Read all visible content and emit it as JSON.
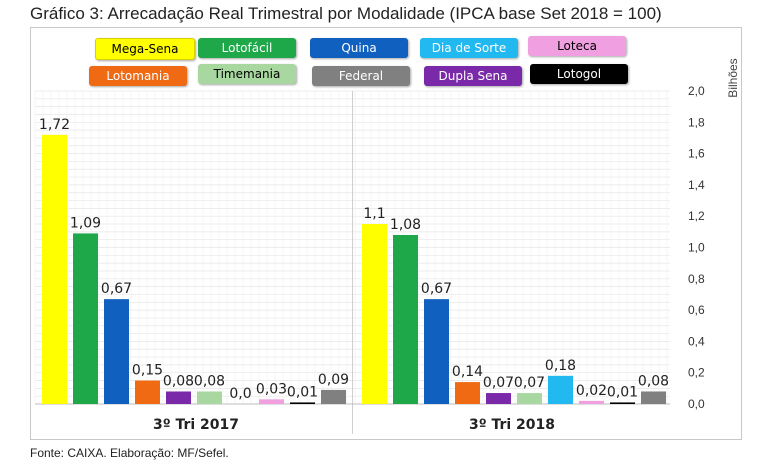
{
  "title": "Gráfico 3: Arrecadação Real Trimestral por Modalidade (IPCA base Set 2018 = 100)",
  "source": "Fonte: CAIXA. Elaboração: MF/Sefel.",
  "chart_data": {
    "type": "bar",
    "categories": [
      "3º Tri 2017",
      "3º Tri 2018"
    ],
    "ylabel": "Bilhões",
    "ylim": [
      0,
      2.0
    ],
    "yticks": [
      "0,0",
      "0,2",
      "0,4",
      "0,6",
      "0,8",
      "1,0",
      "1,2",
      "1,4",
      "1,6",
      "1,8",
      "2,0"
    ],
    "grid": true,
    "legend_position": "top",
    "series": [
      {
        "name": "Mega-Sena",
        "color": "#ffff00",
        "text_color": "#000000",
        "values": [
          1.72,
          1.15
        ],
        "labels": [
          "1,72",
          "1,1"
        ]
      },
      {
        "name": "Lotofácil",
        "color": "#1fa84a",
        "text_color": "#ffffff",
        "values": [
          1.09,
          1.08
        ],
        "labels": [
          "1,09",
          "1,08"
        ]
      },
      {
        "name": "Quina",
        "color": "#1060c0",
        "text_color": "#ffffff",
        "values": [
          0.67,
          0.67
        ],
        "labels": [
          "0,67",
          "0,67"
        ]
      },
      {
        "name": "Dia de Sorte",
        "color": "#22b8f0",
        "text_color": "#ffffff",
        "values": [
          null,
          0.18
        ],
        "labels": [
          "",
          "0,18"
        ]
      },
      {
        "name": "Loteca",
        "color": "#f0a0e0",
        "text_color": "#000000",
        "values": [
          null,
          null
        ],
        "labels": [
          "",
          ""
        ]
      },
      {
        "name": "Lotomania",
        "color": "#f06a14",
        "text_color": "#ffffff",
        "values": [
          0.15,
          0.14
        ],
        "labels": [
          "0,15",
          "0,14"
        ]
      },
      {
        "name": "Timemania",
        "color": "#a8d8a0",
        "text_color": "#000000",
        "values": [
          0.08,
          0.07
        ],
        "labels": [
          "0,08",
          "0,07"
        ]
      },
      {
        "name": "Federal",
        "color": "#808080",
        "text_color": "#ffffff",
        "values": [
          0.09,
          0.08
        ],
        "labels": [
          "0,09",
          "0,08"
        ]
      },
      {
        "name": "Dupla Sena",
        "color": "#7a2aa8",
        "text_color": "#ffffff",
        "values": [
          0.08,
          0.07
        ],
        "labels": [
          "0,08",
          "0,07"
        ]
      },
      {
        "name": "Lotogol",
        "color": "#000000",
        "text_color": "#ffffff",
        "values": [
          0.0,
          0.01
        ],
        "labels": [
          "0,0",
          "0,01"
        ]
      }
    ],
    "extra_bars_2017": [
      {
        "color": "#f0a0e0",
        "value": 0.03,
        "label": "0,03"
      },
      {
        "color": "#000000",
        "value": 0.01,
        "label": "0,01"
      }
    ],
    "extra_bars_2018": [
      {
        "color": "#f0a0e0",
        "value": 0.02,
        "label": "0,02"
      }
    ]
  }
}
